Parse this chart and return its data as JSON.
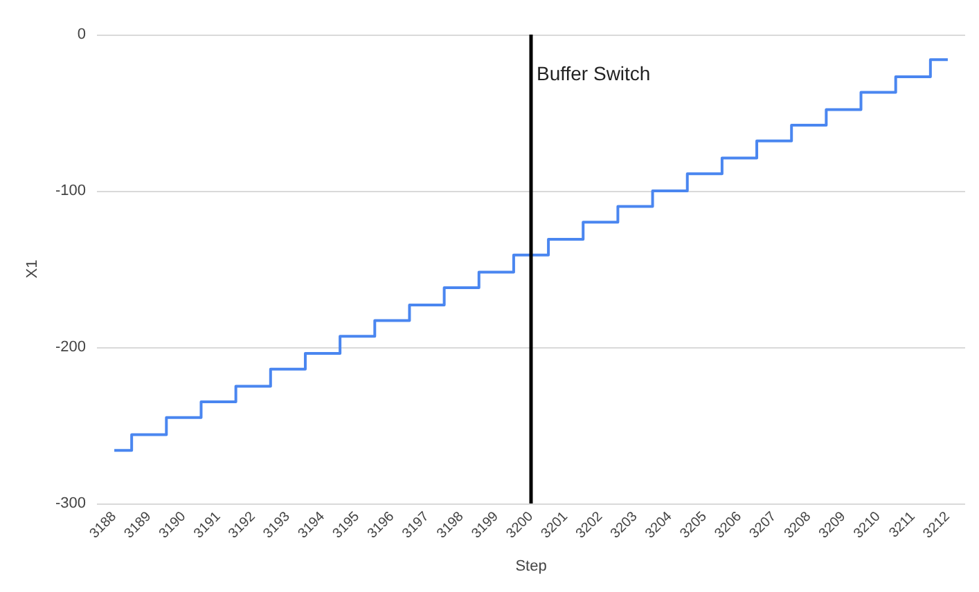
{
  "chart_data": {
    "type": "step",
    "xlabel": "Step",
    "ylabel": "X1",
    "categories": [
      "3188",
      "3189",
      "3190",
      "3191",
      "3192",
      "3193",
      "3194",
      "3195",
      "3196",
      "3197",
      "3198",
      "3199",
      "3200",
      "3201",
      "3202",
      "3203",
      "3204",
      "3205",
      "3206",
      "3207",
      "3208",
      "3209",
      "3210",
      "3211",
      "3212"
    ],
    "series": [
      {
        "color": "#4a86f0",
        "values": [
          -266,
          -256,
          -245,
          -235,
          -225,
          -214,
          -204,
          -193,
          -183,
          -173,
          -162,
          -152,
          -141,
          -131,
          -120,
          -110,
          -100,
          -89,
          -79,
          -68,
          -58,
          -48,
          -37,
          -27,
          -16
        ]
      }
    ],
    "ylim": [
      -300,
      0
    ],
    "yticks": [
      -300,
      -200,
      -100,
      0
    ],
    "grid": "y",
    "marker": "none",
    "line_style": "solid",
    "ref_lines": [
      {
        "axis": "x",
        "value": "3200",
        "label": "Buffer Switch",
        "color": "#000000"
      }
    ]
  }
}
